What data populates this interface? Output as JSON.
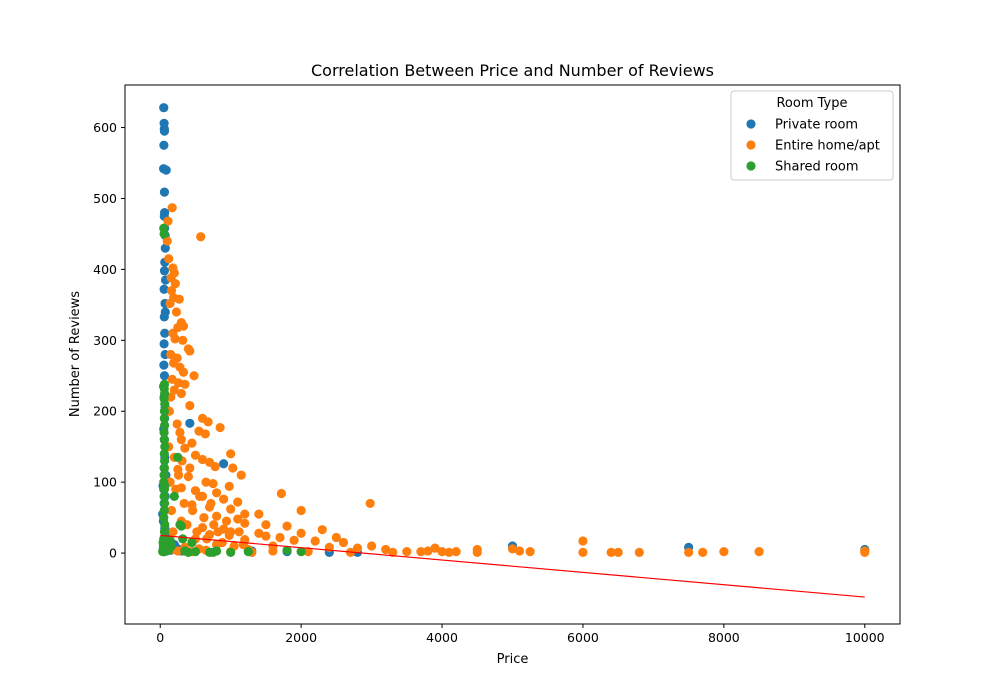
{
  "chart_data": {
    "type": "scatter",
    "title": "Correlation Between Price and Number of Reviews",
    "xlabel": "Price",
    "ylabel": "Number of Reviews",
    "xlim": [
      -500,
      10500
    ],
    "ylim": [
      -100,
      660
    ],
    "xticks": [
      0,
      2000,
      4000,
      6000,
      8000,
      10000
    ],
    "yticks": [
      0,
      100,
      200,
      300,
      400,
      500,
      600
    ],
    "legend": {
      "title": "Room Type",
      "placement": "top-right"
    },
    "series": [
      {
        "name": "Private room",
        "color": "#1f77b4",
        "points": [
          [
            50,
            628
          ],
          [
            55,
            606
          ],
          [
            58,
            598
          ],
          [
            60,
            595
          ],
          [
            52,
            575
          ],
          [
            48,
            542
          ],
          [
            85,
            540
          ],
          [
            60,
            509
          ],
          [
            62,
            480
          ],
          [
            58,
            475
          ],
          [
            62,
            458
          ],
          [
            70,
            448
          ],
          [
            72,
            430
          ],
          [
            65,
            410
          ],
          [
            60,
            398
          ],
          [
            75,
            385
          ],
          [
            55,
            372
          ],
          [
            68,
            352
          ],
          [
            72,
            340
          ],
          [
            58,
            333
          ],
          [
            64,
            310
          ],
          [
            55,
            295
          ],
          [
            70,
            280
          ],
          [
            52,
            265
          ],
          [
            60,
            250
          ],
          [
            48,
            235
          ],
          [
            55,
            220
          ],
          [
            70,
            205
          ],
          [
            62,
            190
          ],
          [
            50,
            175
          ],
          [
            58,
            160
          ],
          [
            70,
            150
          ],
          [
            65,
            135
          ],
          [
            55,
            120
          ],
          [
            80,
            110
          ],
          [
            60,
            100
          ],
          [
            50,
            90
          ],
          [
            70,
            80
          ],
          [
            55,
            70
          ],
          [
            60,
            60
          ],
          [
            35,
            55
          ],
          [
            40,
            95
          ],
          [
            45,
            45
          ],
          [
            65,
            35
          ],
          [
            75,
            25
          ],
          [
            50,
            20
          ],
          [
            80,
            15
          ],
          [
            60,
            10
          ],
          [
            40,
            5
          ],
          [
            55,
            2
          ],
          [
            100,
            18
          ],
          [
            120,
            8
          ],
          [
            150,
            4
          ],
          [
            200,
            12
          ],
          [
            250,
            6
          ],
          [
            300,
            3
          ],
          [
            420,
            183
          ],
          [
            900,
            126
          ],
          [
            1300,
            3
          ],
          [
            1800,
            2
          ],
          [
            2400,
            1
          ],
          [
            2800,
            1
          ],
          [
            5000,
            10
          ],
          [
            7500,
            8
          ],
          [
            10000,
            5
          ]
        ]
      },
      {
        "name": "Entire home/apt",
        "color": "#ff7f0e",
        "points": [
          [
            170,
            487
          ],
          [
            110,
            468
          ],
          [
            100,
            440
          ],
          [
            120,
            415
          ],
          [
            575,
            446
          ],
          [
            180,
            402
          ],
          [
            200,
            395
          ],
          [
            155,
            388
          ],
          [
            215,
            380
          ],
          [
            160,
            370
          ],
          [
            190,
            360
          ],
          [
            270,
            358
          ],
          [
            140,
            352
          ],
          [
            230,
            340
          ],
          [
            300,
            325
          ],
          [
            330,
            320
          ],
          [
            250,
            318
          ],
          [
            180,
            310
          ],
          [
            210,
            302
          ],
          [
            320,
            300
          ],
          [
            400,
            288
          ],
          [
            420,
            285
          ],
          [
            150,
            280
          ],
          [
            240,
            275
          ],
          [
            190,
            268
          ],
          [
            280,
            262
          ],
          [
            330,
            255
          ],
          [
            480,
            250
          ],
          [
            170,
            245
          ],
          [
            260,
            240
          ],
          [
            350,
            238
          ],
          [
            200,
            230
          ],
          [
            300,
            225
          ],
          [
            150,
            220
          ],
          [
            420,
            208
          ],
          [
            600,
            190
          ],
          [
            680,
            185
          ],
          [
            240,
            182
          ],
          [
            850,
            177
          ],
          [
            550,
            172
          ],
          [
            640,
            168
          ],
          [
            300,
            160
          ],
          [
            450,
            155
          ],
          [
            350,
            148
          ],
          [
            1000,
            140
          ],
          [
            500,
            138
          ],
          [
            200,
            135
          ],
          [
            600,
            132
          ],
          [
            700,
            128
          ],
          [
            780,
            122
          ],
          [
            1030,
            120
          ],
          [
            250,
            118
          ],
          [
            1150,
            110
          ],
          [
            400,
            108
          ],
          [
            650,
            100
          ],
          [
            750,
            98
          ],
          [
            980,
            94
          ],
          [
            300,
            92
          ],
          [
            500,
            88
          ],
          [
            800,
            85
          ],
          [
            1720,
            84
          ],
          [
            600,
            80
          ],
          [
            900,
            76
          ],
          [
            1100,
            72
          ],
          [
            2980,
            70
          ],
          [
            450,
            68
          ],
          [
            700,
            65
          ],
          [
            1000,
            62
          ],
          [
            1200,
            55
          ],
          [
            1400,
            55
          ],
          [
            2000,
            60
          ],
          [
            800,
            52
          ],
          [
            1100,
            48
          ],
          [
            300,
            45
          ],
          [
            1200,
            42
          ],
          [
            1500,
            40
          ],
          [
            1800,
            38
          ],
          [
            600,
            36
          ],
          [
            900,
            34
          ],
          [
            2300,
            33
          ],
          [
            1000,
            30
          ],
          [
            1400,
            28
          ],
          [
            2000,
            28
          ],
          [
            700,
            26
          ],
          [
            1500,
            24
          ],
          [
            1700,
            22
          ],
          [
            2500,
            22
          ],
          [
            500,
            20
          ],
          [
            1200,
            19
          ],
          [
            1900,
            18
          ],
          [
            2200,
            17
          ],
          [
            2600,
            15
          ],
          [
            3000,
            10
          ],
          [
            800,
            12
          ],
          [
            1600,
            10
          ],
          [
            2400,
            8
          ],
          [
            2800,
            7
          ],
          [
            3200,
            5
          ],
          [
            3500,
            2
          ],
          [
            3700,
            2
          ],
          [
            3800,
            3
          ],
          [
            3900,
            7
          ],
          [
            4000,
            2
          ],
          [
            4100,
            1
          ],
          [
            4200,
            2
          ],
          [
            4500,
            5
          ],
          [
            4500,
            1
          ],
          [
            5000,
            6
          ],
          [
            5100,
            3
          ],
          [
            5250,
            2
          ],
          [
            6000,
            17
          ],
          [
            6000,
            1
          ],
          [
            6400,
            1
          ],
          [
            6500,
            1
          ],
          [
            6800,
            1
          ],
          [
            7500,
            1
          ],
          [
            7700,
            1
          ],
          [
            8000,
            2
          ],
          [
            8500,
            2
          ],
          [
            10000,
            3
          ],
          [
            10000,
            1
          ],
          [
            150,
            5
          ],
          [
            250,
            3
          ],
          [
            350,
            8
          ],
          [
            450,
            2
          ],
          [
            550,
            6
          ],
          [
            650,
            4
          ],
          [
            1000,
            2
          ],
          [
            1300,
            1
          ],
          [
            1600,
            3
          ],
          [
            2100,
            2
          ],
          [
            2700,
            1
          ],
          [
            3300,
            1
          ],
          [
            120,
            150
          ],
          [
            130,
            200
          ],
          [
            140,
            100
          ],
          [
            160,
            60
          ],
          [
            180,
            30
          ],
          [
            220,
            90
          ],
          [
            260,
            110
          ],
          [
            280,
            170
          ],
          [
            310,
            130
          ],
          [
            340,
            70
          ],
          [
            380,
            40
          ],
          [
            420,
            120
          ],
          [
            460,
            60
          ],
          [
            520,
            30
          ],
          [
            560,
            80
          ],
          [
            620,
            50
          ],
          [
            660,
            20
          ],
          [
            720,
            70
          ],
          [
            760,
            40
          ],
          [
            820,
            30
          ],
          [
            880,
            15
          ],
          [
            940,
            45
          ],
          [
            980,
            25
          ],
          [
            1050,
            10
          ],
          [
            1120,
            30
          ],
          [
            1180,
            12
          ],
          [
            1250,
            5
          ]
        ]
      },
      {
        "name": "Shared room",
        "color": "#2ca02c",
        "points": [
          [
            50,
            458
          ],
          [
            55,
            450
          ],
          [
            60,
            238
          ],
          [
            58,
            232
          ],
          [
            62,
            225
          ],
          [
            55,
            218
          ],
          [
            65,
            210
          ],
          [
            60,
            200
          ],
          [
            58,
            190
          ],
          [
            62,
            180
          ],
          [
            55,
            170
          ],
          [
            60,
            160
          ],
          [
            65,
            150
          ],
          [
            58,
            140
          ],
          [
            62,
            130
          ],
          [
            60,
            120
          ],
          [
            55,
            110
          ],
          [
            50,
            100
          ],
          [
            65,
            95
          ],
          [
            60,
            90
          ],
          [
            55,
            80
          ],
          [
            62,
            70
          ],
          [
            58,
            60
          ],
          [
            50,
            50
          ],
          [
            65,
            40
          ],
          [
            60,
            30
          ],
          [
            55,
            20
          ],
          [
            40,
            15
          ],
          [
            45,
            10
          ],
          [
            70,
            8
          ],
          [
            80,
            5
          ],
          [
            35,
            2
          ],
          [
            90,
            3
          ],
          [
            100,
            6
          ],
          [
            120,
            4
          ],
          [
            140,
            18
          ],
          [
            160,
            10
          ],
          [
            200,
            80
          ],
          [
            250,
            135
          ],
          [
            280,
            40
          ],
          [
            300,
            38
          ],
          [
            320,
            20
          ],
          [
            350,
            3
          ],
          [
            400,
            1
          ],
          [
            450,
            15
          ],
          [
            500,
            2
          ],
          [
            700,
            1
          ],
          [
            750,
            1
          ],
          [
            800,
            3
          ],
          [
            1000,
            1
          ],
          [
            1250,
            2
          ],
          [
            1800,
            4
          ],
          [
            2000,
            2
          ]
        ]
      }
    ],
    "trendline": {
      "color": "#ff0000",
      "x": [
        0,
        10000
      ],
      "y": [
        25,
        -62
      ]
    }
  }
}
